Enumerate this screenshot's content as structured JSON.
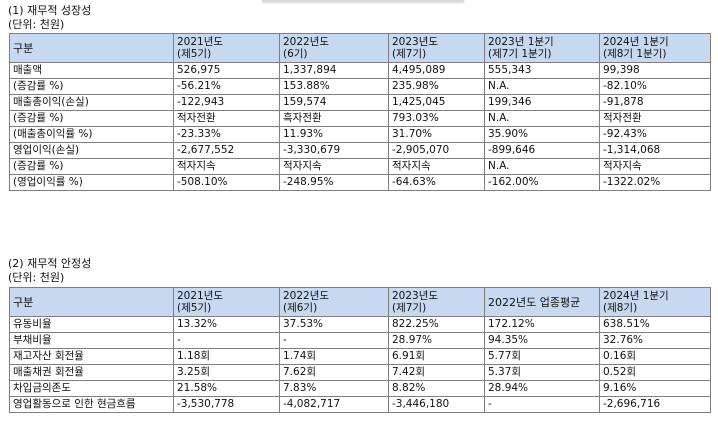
{
  "section1": {
    "title": "(1) 재무적 성장성",
    "unit": "(단위: 천원)",
    "headers": [
      {
        "line1": "구분",
        "line2": ""
      },
      {
        "line1": "2021년도",
        "line2": "(제5기)"
      },
      {
        "line1": "2022년도",
        "line2": "(6기)"
      },
      {
        "line1": "2023년도",
        "line2": "(제7기)"
      },
      {
        "line1": "2023년 1분기",
        "line2": "(제7기 1분기)"
      },
      {
        "line1": "2024년 1분기",
        "line2": "(제8기 1분기)"
      }
    ],
    "rows": [
      [
        "매출액",
        "526,975",
        "1,337,894",
        "4,495,089",
        "555,343",
        "99,398"
      ],
      [
        "(증감률 %)",
        "-56.21%",
        "153.88%",
        "235.98%",
        "N.A.",
        "-82.10%"
      ],
      [
        "매출총이익(손실)",
        "-122,943",
        "159,574",
        "1,425,045",
        "199,346",
        "-91,878"
      ],
      [
        "(증감률 %)",
        "적자전환",
        "흑자전환",
        "793.03%",
        "N.A.",
        "적자전환"
      ],
      [
        "(매출총이익률 %)",
        "-23.33%",
        "11.93%",
        "31.70%",
        "35.90%",
        "-92.43%"
      ],
      [
        "영업이익(손실)",
        "-2,677,552",
        "-3,330,679",
        "-2,905,070",
        "-899,646",
        "-1,314,068"
      ],
      [
        "(증감률 %)",
        "적자지속",
        "적자지속",
        "적자지속",
        "N.A.",
        "적자지속"
      ],
      [
        "(영업이익률 %)",
        "-508.10%",
        "-248.95%",
        "-64.63%",
        "-162.00%",
        "-1322.02%"
      ]
    ]
  },
  "section2": {
    "title": "(2) 재무적 안정성",
    "unit": "(단위: 천원)",
    "headers": [
      {
        "line1": "구분",
        "line2": ""
      },
      {
        "line1": "2021년도",
        "line2": "(제5기)"
      },
      {
        "line1": "2022년도",
        "line2": "(제6기)"
      },
      {
        "line1": "2023년도",
        "line2": "(제7기)"
      },
      {
        "line1": "2022년도 업종평균",
        "line2": ""
      },
      {
        "line1": "2024년 1분기",
        "line2": "(제8기)"
      }
    ],
    "rows": [
      [
        "유동비율",
        "13.32%",
        "37.53%",
        "822.25%",
        "172.12%",
        "638.51%"
      ],
      [
        "부채비율",
        "-",
        "-",
        "28.97%",
        "94.35%",
        "32.76%"
      ],
      [
        "재고자산 회전율",
        "1.18회",
        "1.74회",
        "6.91회",
        "5.77회",
        "0.16회"
      ],
      [
        "매출채권 회전율",
        "3.25회",
        "7.62회",
        "7.42회",
        "5.37회",
        "0.52회"
      ],
      [
        "차입금의존도",
        "21.58%",
        "7.83%",
        "8.82%",
        "28.94%",
        "9.16%"
      ],
      [
        "영업활동으로 인한 현금흐름",
        "-3,530,778",
        "-4,082,717",
        "-3,446,180",
        "-",
        "-2,696,716"
      ]
    ]
  }
}
